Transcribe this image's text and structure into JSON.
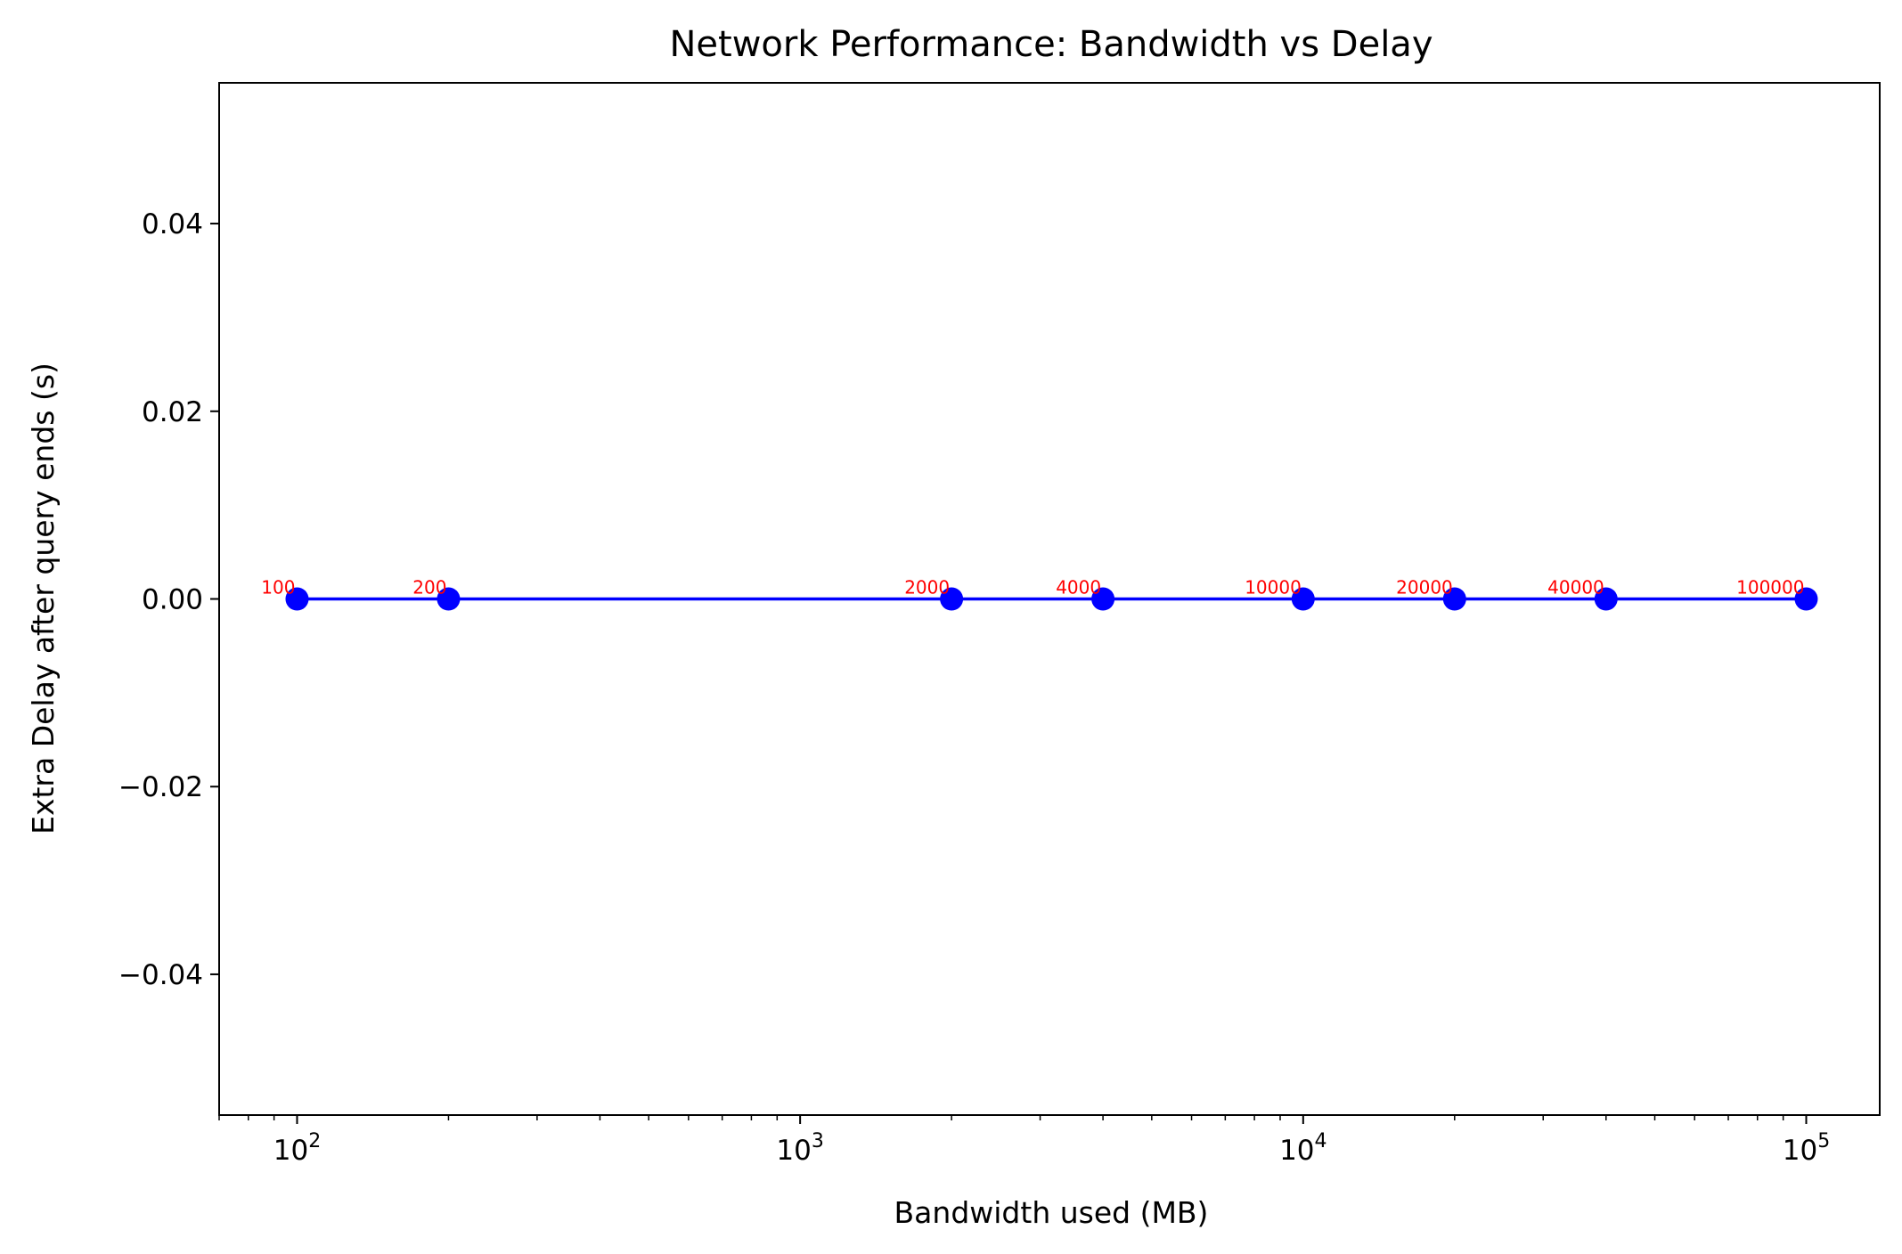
{
  "chart_data": {
    "type": "line",
    "title": "Network Performance: Bandwidth vs Delay",
    "xlabel": "Bandwidth used (MB)",
    "ylabel": "Extra Delay after query ends (s)",
    "xscale": "log",
    "xlim": [
      70,
      140000
    ],
    "ylim": [
      -0.055,
      0.055
    ],
    "x_ticks": [
      {
        "value": 100,
        "base": "10",
        "exp": "2"
      },
      {
        "value": 1000,
        "base": "10",
        "exp": "3"
      },
      {
        "value": 10000,
        "base": "10",
        "exp": "4"
      },
      {
        "value": 100000,
        "base": "10",
        "exp": "5"
      }
    ],
    "y_ticks": [
      {
        "value": 0.04,
        "label": "0.04"
      },
      {
        "value": 0.02,
        "label": "0.02"
      },
      {
        "value": 0.0,
        "label": "0.00"
      },
      {
        "value": -0.02,
        "label": "−0.02"
      },
      {
        "value": -0.04,
        "label": "−0.04"
      }
    ],
    "grid": false,
    "legend": "none",
    "series": [
      {
        "x": [
          100,
          200,
          2000,
          4000,
          10000,
          20000,
          40000,
          100000
        ],
        "y": [
          0,
          0,
          0,
          0,
          0,
          0,
          0,
          0
        ],
        "point_labels": [
          "100",
          "200",
          "2000",
          "4000",
          "10000",
          "20000",
          "40000",
          "100000"
        ],
        "color": "#0000ff",
        "label_color": "#ff0000"
      }
    ]
  }
}
